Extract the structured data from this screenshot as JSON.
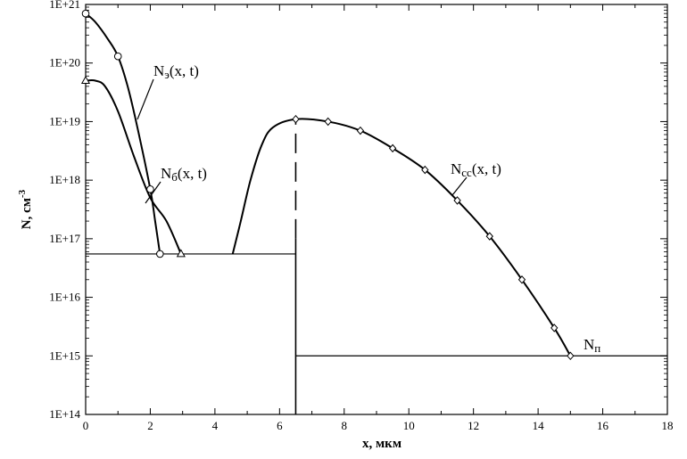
{
  "chart_data": {
    "type": "line",
    "title": "",
    "xlabel": "x, мкм",
    "ylabel": "N, см",
    "ylabel_sup": "-3",
    "xlim": [
      0,
      18
    ],
    "ylim": [
      100000000000000.0,
      1e+21
    ],
    "y_scale": "log",
    "grid": false,
    "x_ticks": [
      "0",
      "2",
      "4",
      "6",
      "8",
      "10",
      "12",
      "14",
      "16",
      "18"
    ],
    "y_ticks": [
      "1E+14",
      "1E+15",
      "1E+16",
      "1E+17",
      "1E+18",
      "1E+19",
      "1E+20",
      "1E+21"
    ],
    "series": [
      {
        "name": "Nэ(x, t)",
        "marker": "circle",
        "points": [
          [
            0,
            7e+20
          ],
          [
            0.3,
            5e+20
          ],
          [
            0.7,
            2.5e+20
          ],
          [
            1,
            1.3e+20
          ],
          [
            1.3,
            4e+19
          ],
          [
            1.6,
            8e+18
          ],
          [
            2,
            7e+17
          ],
          [
            2.15,
            2e+17
          ],
          [
            2.3,
            5.5e+16
          ]
        ],
        "markers_at": [
          [
            0,
            7e+20
          ],
          [
            1,
            1.3e+20
          ],
          [
            2,
            7e+17
          ],
          [
            2.3,
            5.5e+16
          ]
        ]
      },
      {
        "name": "Nб(x, t)",
        "marker": "triangle",
        "points": [
          [
            0,
            5e+19
          ],
          [
            0.3,
            5e+19
          ],
          [
            0.6,
            4e+19
          ],
          [
            1,
            1.5e+19
          ],
          [
            1.5,
            2.5e+18
          ],
          [
            2,
            5e+17
          ],
          [
            2.5,
            2e+17
          ],
          [
            2.95,
            5.5e+16
          ]
        ],
        "markers_at": [
          [
            0,
            5e+19
          ],
          [
            2.95,
            5.5e+16
          ]
        ]
      },
      {
        "name": "Ncc(x, t)",
        "marker": "diamond",
        "points": [
          [
            4.55,
            5.5e+16
          ],
          [
            4.8,
            2e+17
          ],
          [
            5.1,
            1e+18
          ],
          [
            5.45,
            4e+18
          ],
          [
            5.8,
            8e+18
          ],
          [
            6.5,
            1.1e+19
          ],
          [
            7.5,
            1e+19
          ],
          [
            8.5,
            7e+18
          ],
          [
            9.5,
            3.5e+18
          ],
          [
            10.5,
            1.5e+18
          ],
          [
            11.5,
            4.5e+17
          ],
          [
            12.5,
            1.1e+17
          ],
          [
            13.5,
            2e+16
          ],
          [
            14.5,
            3000000000000000.0
          ],
          [
            15,
            1000000000000000.0
          ]
        ],
        "markers_at": [
          [
            6.5,
            1.1e+19
          ],
          [
            7.5,
            1e+19
          ],
          [
            8.5,
            7e+18
          ],
          [
            9.5,
            3.5e+18
          ],
          [
            10.5,
            1.5e+18
          ],
          [
            11.5,
            4.5e+17
          ],
          [
            12.5,
            1.1e+17
          ],
          [
            13.5,
            2e+16
          ],
          [
            14.5,
            3000000000000000.0
          ],
          [
            15,
            1000000000000000.0
          ]
        ]
      },
      {
        "name": "Nп",
        "marker": "none",
        "points": [
          [
            6.5,
            1000000000000000.0
          ],
          [
            18,
            1000000000000000.0
          ]
        ],
        "markers_at": []
      }
    ],
    "background_level": {
      "value": 5.5e+16,
      "x_range": [
        0,
        6.5
      ]
    },
    "dashed_boundary": {
      "x": 6.5,
      "y_range": [
        1e+17,
        1.1e+19
      ]
    },
    "solid_boundary": {
      "x": 6.5,
      "y_range": [
        100000000000000.0,
        1e+17
      ]
    },
    "labels": {
      "ne_main": "N",
      "ne_sub": "э",
      "ne_args": "(x, t)",
      "nb_main": "N",
      "nb_sub": "б",
      "nb_args": "(x, t)",
      "ncc_main": "N",
      "ncc_sub": "cc",
      "ncc_args": "(x, t)",
      "np_main": "N",
      "np_sub": "п"
    }
  }
}
